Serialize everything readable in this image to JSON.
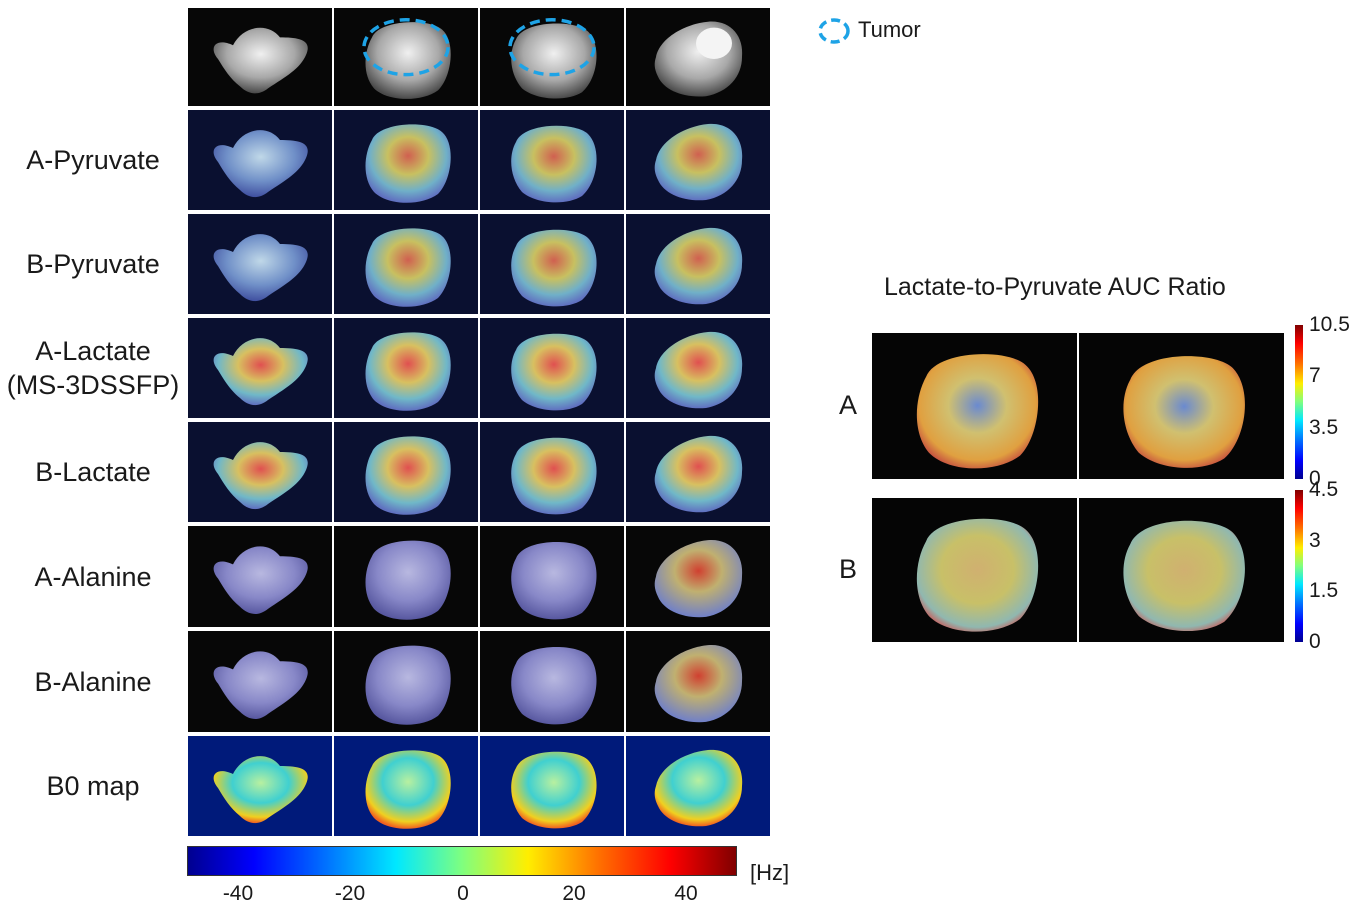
{
  "legend": {
    "tumor_label": "Tumor",
    "tumor_color": "#1ea3e6"
  },
  "rows": [
    {
      "label": "",
      "kind": "anatomy"
    },
    {
      "label": "A-Pyruvate",
      "kind": "overlay-pyr"
    },
    {
      "label": "B-Pyruvate",
      "kind": "overlay-pyr"
    },
    {
      "label": "A-Lactate\n(MS-3DSSFP)",
      "kind": "overlay-lac"
    },
    {
      "label": "B-Lactate",
      "kind": "overlay-lac"
    },
    {
      "label": "A-Alanine",
      "kind": "overlay-ala"
    },
    {
      "label": "B-Alanine",
      "kind": "overlay-ala"
    },
    {
      "label": "B0 map",
      "kind": "b0"
    }
  ],
  "b0_colorbar": {
    "ticks": [
      "-40",
      "-20",
      "0",
      "20",
      "40"
    ],
    "unit": "[Hz]"
  },
  "ratio_panel": {
    "title": "Lactate-to-Pyruvate AUC Ratio",
    "rows": [
      {
        "label": "A",
        "ticks": [
          "10.5",
          "7",
          "3.5",
          "0"
        ]
      },
      {
        "label": "B",
        "ticks": [
          "4.5",
          "3",
          "1.5",
          "0"
        ]
      }
    ]
  },
  "colors": {
    "jet": [
      "#00007f",
      "#0000ff",
      "#007fff",
      "#00ffff",
      "#7fff7f",
      "#ffff00",
      "#ff7f00",
      "#ff0000",
      "#7f0000"
    ]
  }
}
